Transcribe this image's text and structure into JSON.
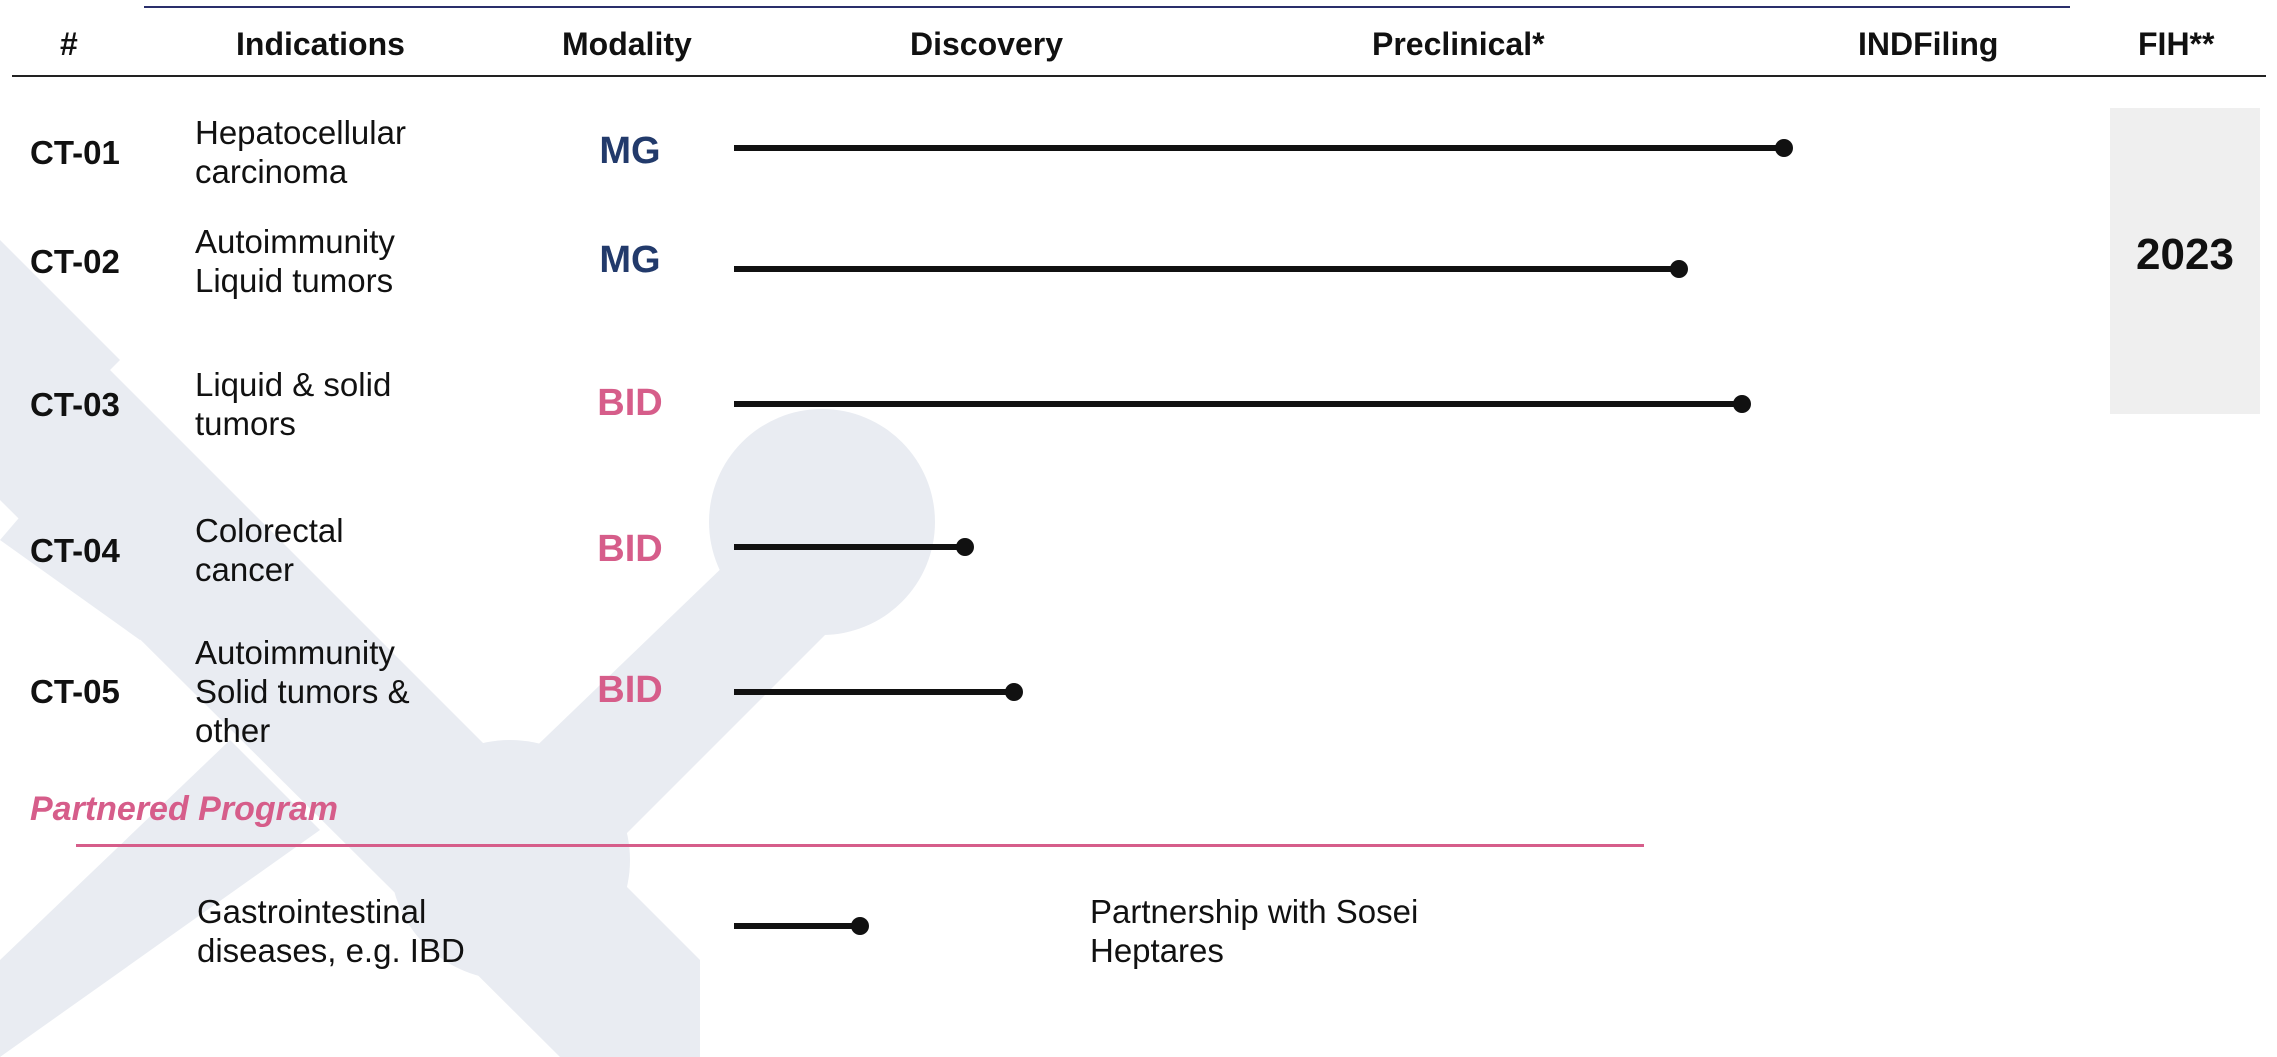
{
  "colors": {
    "mg": "#223a6b",
    "bid": "#d65d8a",
    "accent": "#d65d8a",
    "bar": "#111111",
    "dashed_line": "#a8a8a8",
    "background_shape": "#e9ecf2"
  },
  "header": {
    "id": "#",
    "indications": "Indications",
    "modality": "Modality",
    "discovery": "Discovery",
    "preclinical": "Preclinical*",
    "ind_filing": "INDFiling",
    "fih": "FIH**"
  },
  "rows": [
    {
      "id": "CT-01",
      "indication": "Hepatocellular\ncarcinoma",
      "modality": "MG"
    },
    {
      "id": "CT-02",
      "indication": "Autoimmunity\nLiquid tumors",
      "modality": "MG"
    },
    {
      "id": "CT-03",
      "indication": "Liquid & solid\ntumors",
      "modality": "BID"
    },
    {
      "id": "CT-04",
      "indication": "Colorectal\ncancer",
      "modality": "BID"
    },
    {
      "id": "CT-05",
      "indication": "Autoimmunity\nSolid tumors &\nother",
      "modality": "BID"
    }
  ],
  "fih_year": "2023",
  "partnered": {
    "title": "Partnered Program",
    "indication": "Gastrointestinal\ndiseases, e.g. IBD",
    "note": "Partnership with Sosei\nHeptares"
  },
  "chart_data": {
    "type": "bar",
    "orientation": "horizontal",
    "value_scale": "stage position: 0 = start of Discovery, 1 = end of Discovery, 2 = end of Preclinical*, 3 = IND filing",
    "stages": [
      "Discovery",
      "Preclinical*",
      "INDFiling",
      "FIH**"
    ],
    "categories": [
      "CT-01",
      "CT-02",
      "CT-03",
      "CT-04",
      "CT-05",
      "Gastrointestinal diseases, e.g. IBD"
    ],
    "values": [
      1.5,
      1.35,
      1.44,
      0.33,
      0.4,
      0.18
    ],
    "ind_filing_marker": 3
  }
}
